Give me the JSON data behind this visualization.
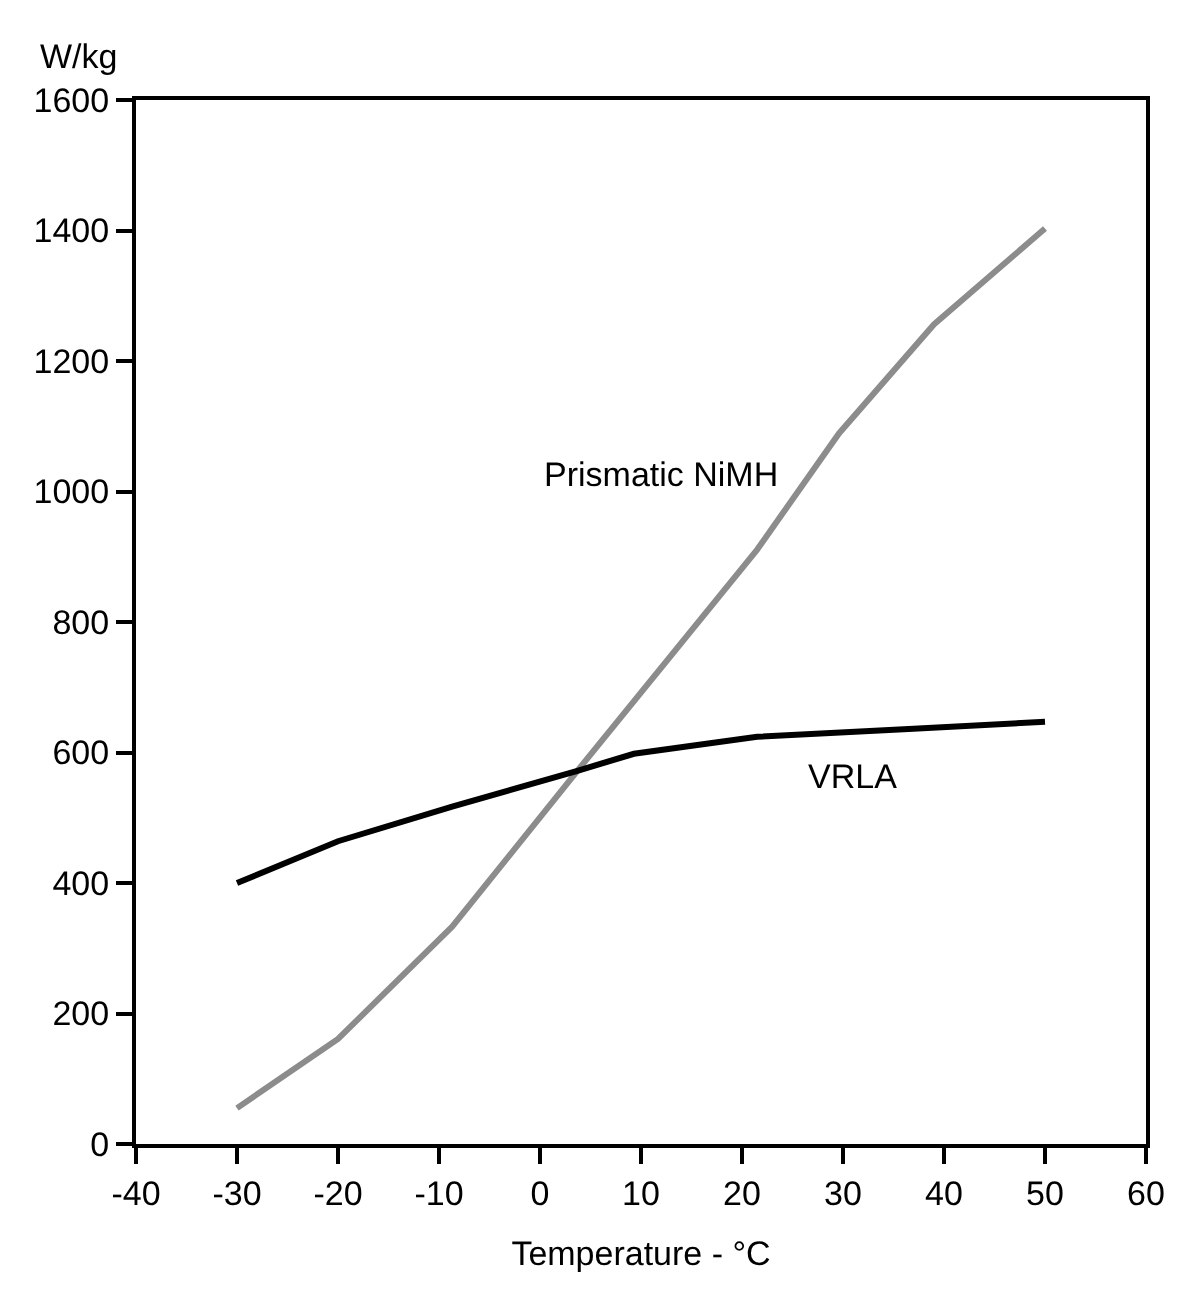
{
  "chart_data": {
    "type": "line",
    "ylabel": "W/kg",
    "xlabel": "Temperature - °C",
    "xlim": [
      -40,
      60
    ],
    "xticks": [
      -40,
      -30,
      -20,
      -10,
      0,
      10,
      20,
      30,
      40,
      50,
      60
    ],
    "ylim": [
      0,
      1600
    ],
    "yticks": [
      0,
      200,
      400,
      600,
      800,
      1000,
      1200,
      1400,
      1600
    ],
    "grid": false,
    "legend": false,
    "marker": "none",
    "line_style": "solid",
    "series": [
      {
        "name": "Prismatic NiMH",
        "color": "#8c8c8c",
        "x": [
          -30,
          -20,
          -8.7,
          3.7,
          21.5,
          29.6,
          39,
          50
        ],
        "values": [
          55,
          161,
          333,
          572,
          911,
          1089,
          1256,
          1403
        ]
      },
      {
        "name": "VRLA",
        "color": "#000000",
        "x": [
          -30,
          -20,
          -8.7,
          3.7,
          9.3,
          21.5,
          36.5,
          50
        ],
        "values": [
          400,
          464,
          517,
          572,
          598,
          624,
          636,
          647
        ]
      }
    ]
  }
}
